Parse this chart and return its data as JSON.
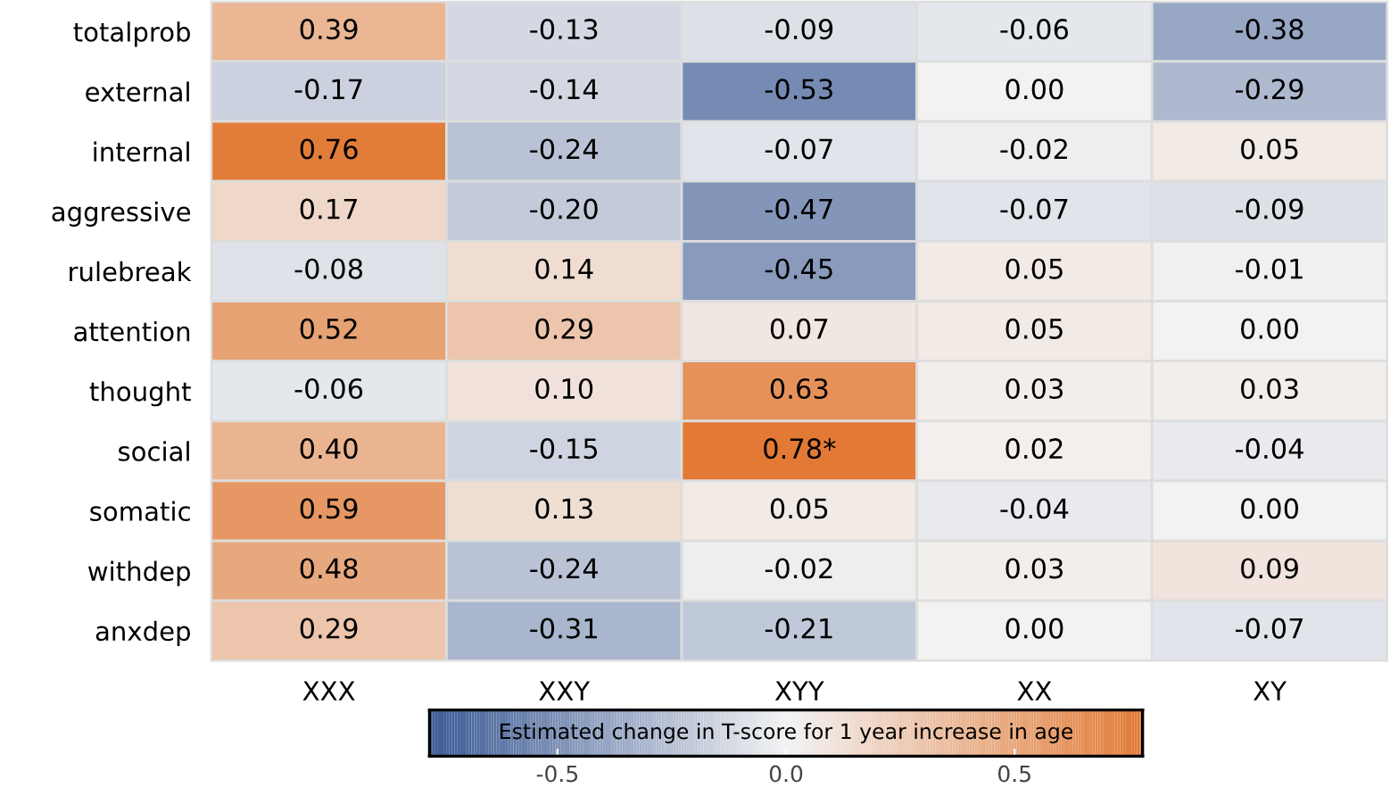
{
  "chart_data": {
    "type": "heatmap",
    "categories": [
      "XXX",
      "XXY",
      "XYY",
      "XX",
      "XY"
    ],
    "y_categories": [
      "totalprob",
      "external",
      "internal",
      "aggressive",
      "rulebreak",
      "attention",
      "thought",
      "social",
      "somatic",
      "withdep",
      "anxdep"
    ],
    "cells": [
      [
        0.39,
        -0.13,
        -0.09,
        -0.06,
        -0.38
      ],
      [
        -0.17,
        -0.14,
        -0.53,
        0.0,
        -0.29
      ],
      [
        0.76,
        -0.24,
        -0.07,
        -0.02,
        0.05
      ],
      [
        0.17,
        -0.2,
        -0.47,
        -0.07,
        -0.09
      ],
      [
        -0.08,
        0.14,
        -0.45,
        0.05,
        -0.01
      ],
      [
        0.52,
        0.29,
        0.07,
        0.05,
        0.0
      ],
      [
        -0.06,
        0.1,
        0.63,
        0.03,
        0.03
      ],
      [
        0.4,
        -0.15,
        0.78,
        0.02,
        -0.04
      ],
      [
        0.59,
        0.13,
        0.05,
        -0.04,
        0.0
      ],
      [
        0.48,
        -0.24,
        -0.02,
        0.03,
        0.09
      ],
      [
        0.29,
        -0.31,
        -0.21,
        0.0,
        -0.07
      ]
    ],
    "cell_labels": [
      [
        "0.39",
        "-0.13",
        "-0.09",
        "-0.06",
        "-0.38"
      ],
      [
        "-0.17",
        "-0.14",
        "-0.53",
        "0.00",
        "-0.29"
      ],
      [
        "0.76",
        "-0.24",
        "-0.07",
        "-0.02",
        "0.05"
      ],
      [
        "0.17",
        "-0.20",
        "-0.47",
        "-0.07",
        "-0.09"
      ],
      [
        "-0.08",
        "0.14",
        "-0.45",
        "0.05",
        "-0.01"
      ],
      [
        "0.52",
        "0.29",
        "0.07",
        "0.05",
        "0.00"
      ],
      [
        "-0.06",
        "0.10",
        "0.63",
        "0.03",
        "0.03"
      ],
      [
        "0.40",
        "-0.15",
        "0.78*",
        "0.02",
        "-0.04"
      ],
      [
        "0.59",
        "0.13",
        "0.05",
        "-0.04",
        "0.00"
      ],
      [
        "0.48",
        "-0.24",
        "-0.02",
        "0.03",
        "0.09"
      ],
      [
        "0.29",
        "-0.31",
        "-0.21",
        "0.00",
        "-0.07"
      ]
    ],
    "clim": [
      -0.78,
      0.78
    ],
    "cticks": [
      {
        "value": -0.5,
        "label": "-0.5"
      },
      {
        "value": 0,
        "label": "0.0"
      },
      {
        "value": 0.5,
        "label": "0.5"
      }
    ],
    "clabel": "Estimated change in T-score for 1 year increase in age"
  }
}
